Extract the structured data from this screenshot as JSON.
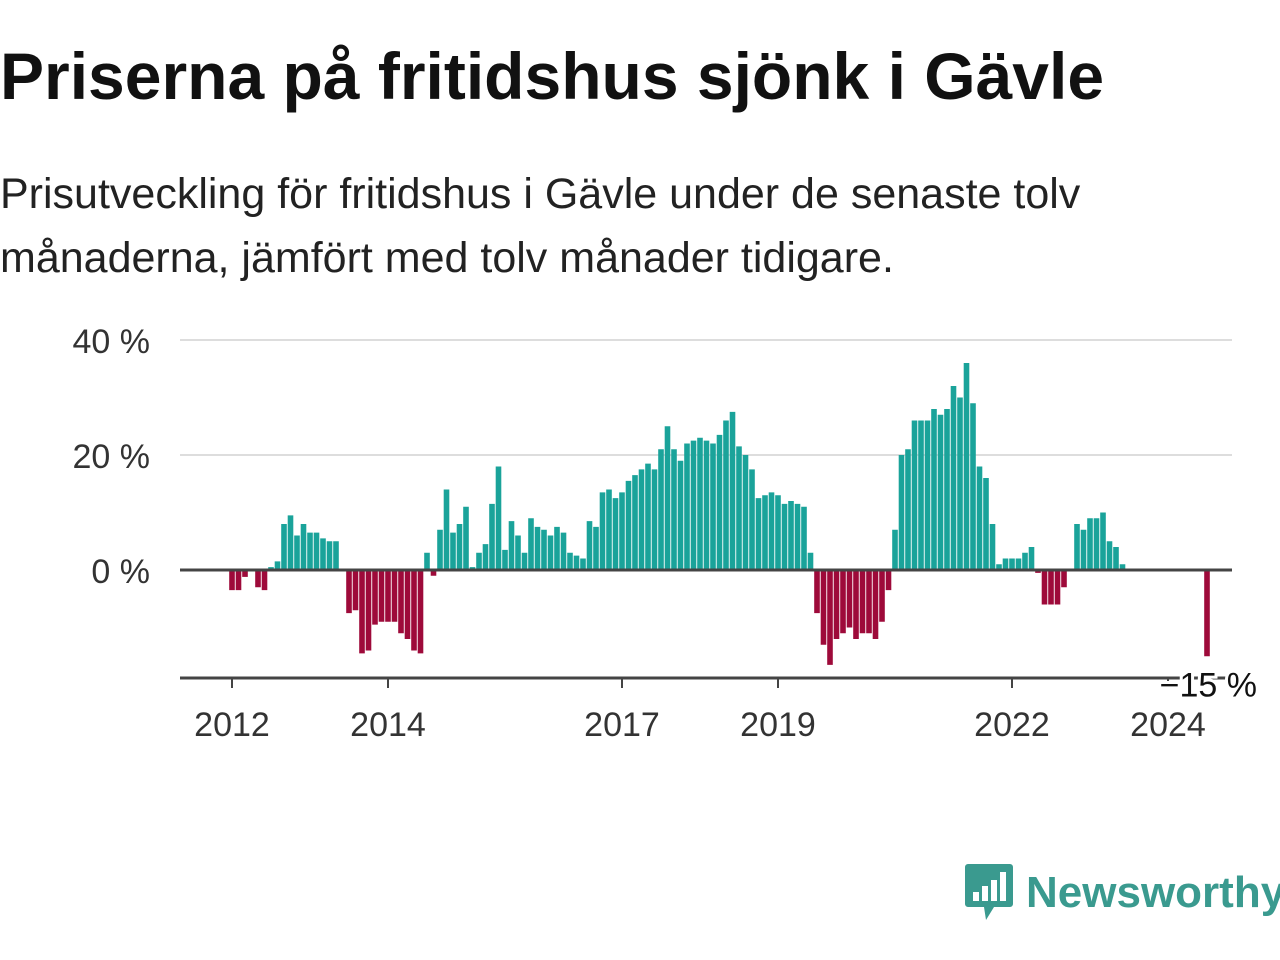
{
  "title": "Priserna på fritidshus sjönk i Gävle",
  "subtitle": "Prisutveckling för fritidshus i Gävle under de senaste tolv månaderna, jämfört med tolv månader tidigare.",
  "brand": {
    "name": "Newsworthy",
    "logo_icon": "bar-chart-speech-bubble-icon",
    "color": "#3a9a8f"
  },
  "colors": {
    "positive": "#1aa39a",
    "negative": "#9e0a3a",
    "gridline": "#dddddd",
    "axis": "#444444"
  },
  "chart_data": {
    "type": "bar",
    "title": "Priserna på fritidshus sjönk i Gävle",
    "unit": "%",
    "ylim": [
      -19,
      40
    ],
    "yticks": [
      0,
      20,
      40
    ],
    "ytick_labels": [
      "0 %",
      "20 %",
      "40 %"
    ],
    "grid": true,
    "x_start": "2012-01",
    "xtick_labels": [
      {
        "label": "2012",
        "month": "2012-01"
      },
      {
        "label": "2014",
        "month": "2014-01"
      },
      {
        "label": "2017",
        "month": "2017-01"
      },
      {
        "label": "2019",
        "month": "2019-01"
      },
      {
        "label": "2022",
        "month": "2022-01"
      },
      {
        "label": "2024",
        "month": "2024-01"
      }
    ],
    "last_value_label": "−15 %",
    "values": [
      -3.5,
      -3.5,
      -1.2,
      0,
      -3,
      -3.5,
      0.5,
      1.5,
      8,
      9.5,
      6,
      8,
      6.5,
      6.5,
      5.5,
      5,
      5,
      0,
      -7.5,
      -7,
      -14.5,
      -14,
      -9.5,
      -9,
      -9,
      -9,
      -11,
      -12,
      -14,
      -14.5,
      3,
      -1,
      7,
      14,
      6.5,
      8,
      11,
      0.5,
      3,
      4.5,
      11.5,
      18,
      3.5,
      8.5,
      6,
      3,
      9,
      7.5,
      7,
      6,
      7.5,
      6.5,
      3,
      2.5,
      2,
      8.5,
      7.5,
      13.5,
      14,
      12.5,
      13.5,
      15.5,
      16.5,
      17.5,
      18.5,
      17.5,
      21,
      25,
      21,
      19,
      22,
      22.5,
      23,
      22.5,
      22,
      23.5,
      26,
      27.5,
      21.5,
      20,
      17.5,
      12.5,
      13,
      13.5,
      13,
      11.5,
      12,
      11.5,
      11,
      3,
      -7.5,
      -13,
      -16.5,
      -12,
      -11,
      -10,
      -12,
      -11,
      -11,
      -12,
      -9,
      -3.5,
      7,
      20,
      21,
      26,
      26,
      26,
      28,
      27,
      28,
      32,
      30,
      36,
      29,
      18,
      16,
      8,
      1,
      2,
      2,
      2,
      3,
      4,
      -0.5,
      -6,
      -6,
      -6,
      -3,
      0,
      8,
      7,
      9,
      9,
      10,
      5,
      4,
      1,
      0,
      0,
      0,
      0,
      0,
      0,
      0,
      0,
      0,
      0,
      0,
      0,
      -15
    ]
  }
}
